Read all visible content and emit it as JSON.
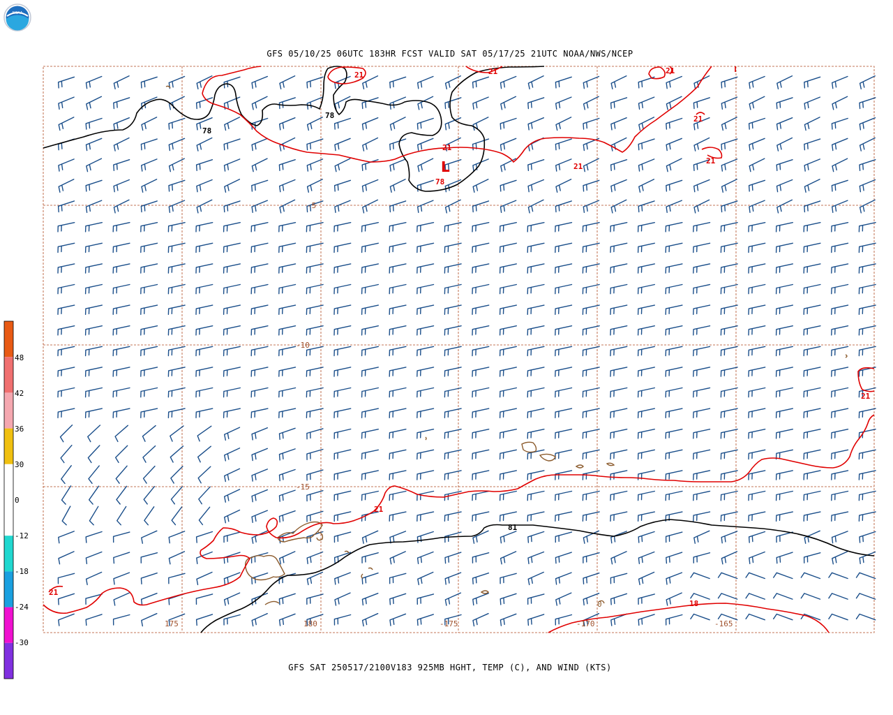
{
  "logo": {
    "text": "NOAA"
  },
  "title": "GFS 05/10/25 06UTC 183HR FCST VALID SAT 05/17/25 21UTC NOAA/NWS/NCEP",
  "footer": "GFS SAT 250517/2100V183 925MB HGHT, TEMP (C), AND WIND (KTS)",
  "map": {
    "lat_labels": [
      "-5",
      "-10",
      "-15"
    ],
    "lon_labels": [
      "175",
      "180",
      "-175",
      "-170",
      "-165"
    ],
    "height_contour_labels": [
      "78",
      "78",
      "78",
      "81"
    ],
    "low_center": {
      "symbol": "L",
      "value": "78"
    },
    "temp_contour_labels": [
      "21",
      "21",
      "21",
      "21",
      "21",
      "21",
      "21",
      "21",
      "21",
      "21",
      "18",
      "0"
    ],
    "colors": {
      "height_contour": "#000000",
      "temp_contour": "#e00000",
      "wind_barbs": "#1a4e8a",
      "grid": "#b04a20",
      "coastline": "#8b5a2b"
    }
  },
  "colorbar": {
    "labels": [
      "48",
      "42",
      "36",
      "30",
      "0",
      "-12",
      "-18",
      "-24",
      "-30"
    ],
    "colors": [
      "#e85a14",
      "#f07070",
      "#f5a8b0",
      "#f0c010",
      "#ffffff",
      "#ffffff",
      "#20d8d0",
      "#1aa0e0",
      "#f010d0",
      "#8030e0"
    ]
  }
}
